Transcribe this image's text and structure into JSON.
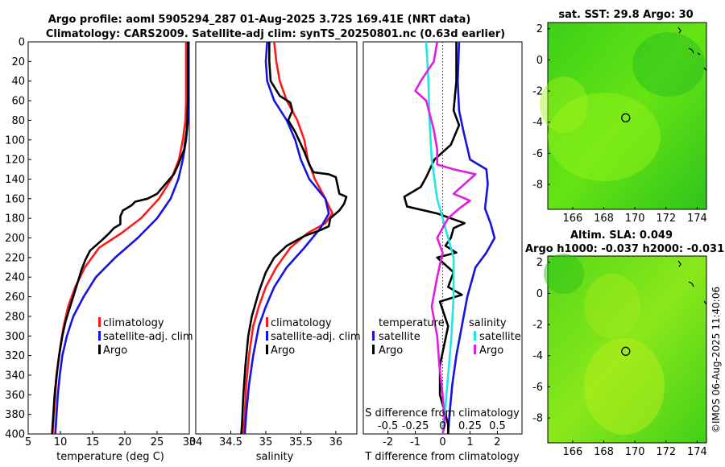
{
  "title": {
    "line1": "Argo profile: aoml 5905294_287 01-Aug-2025 3.72S 169.41E (NRT data)",
    "line2": "Climatology: CARS2009. Satellite-adj clim: synTS_20250801.nc (0.63d earlier)"
  },
  "colors": {
    "climatology": "#ff1a1a",
    "satellite": "#1414e0",
    "argo": "#000000",
    "cyan": "#22e6e6",
    "magenta": "#e01ee0",
    "map_green": "#44dd22"
  },
  "chart_data": [
    {
      "type": "line",
      "name": "temperature-profile",
      "xlabel": "temperature (deg C)",
      "ylabel": "",
      "xlim": [
        5,
        30
      ],
      "ylim": [
        400,
        0
      ],
      "xticks": [
        "5",
        "10",
        "15",
        "20",
        "25",
        "30"
      ],
      "yticks": [
        "0",
        "20",
        "40",
        "60",
        "80",
        "100",
        "120",
        "140",
        "160",
        "180",
        "200",
        "220",
        "240",
        "260",
        "280",
        "300",
        "320",
        "340",
        "360",
        "380",
        "400"
      ],
      "legend": [
        "climatology",
        "satellite-adj. clim",
        "Argo"
      ],
      "series": [
        {
          "name": "climatology",
          "color": "climatology",
          "points": [
            [
              29.5,
              0
            ],
            [
              29.5,
              60
            ],
            [
              29.4,
              80
            ],
            [
              29.0,
              100
            ],
            [
              28.4,
              120
            ],
            [
              27.2,
              140
            ],
            [
              25.3,
              160
            ],
            [
              22.5,
              180
            ],
            [
              19.5,
              195
            ],
            [
              16.0,
              210
            ],
            [
              13.8,
              230
            ],
            [
              12.3,
              250
            ],
            [
              11.2,
              270
            ],
            [
              10.5,
              290
            ],
            [
              10.0,
              310
            ],
            [
              9.6,
              330
            ],
            [
              9.3,
              350
            ],
            [
              9.1,
              370
            ],
            [
              8.9,
              390
            ],
            [
              8.8,
              400
            ]
          ]
        },
        {
          "name": "satellite-adj. clim",
          "color": "satellite",
          "points": [
            [
              29.9,
              0
            ],
            [
              29.9,
              60
            ],
            [
              29.8,
              80
            ],
            [
              29.5,
              100
            ],
            [
              29.0,
              120
            ],
            [
              28.3,
              140
            ],
            [
              27.1,
              160
            ],
            [
              25.0,
              180
            ],
            [
              22.0,
              200
            ],
            [
              18.5,
              220
            ],
            [
              15.5,
              240
            ],
            [
              13.6,
              260
            ],
            [
              12.0,
              280
            ],
            [
              11.0,
              300
            ],
            [
              10.3,
              320
            ],
            [
              9.9,
              340
            ],
            [
              9.6,
              360
            ],
            [
              9.4,
              380
            ],
            [
              9.2,
              400
            ]
          ]
        },
        {
          "name": "Argo",
          "color": "argo",
          "points": [
            [
              29.8,
              0
            ],
            [
              29.8,
              60
            ],
            [
              29.6,
              90
            ],
            [
              29.2,
              110
            ],
            [
              28.3,
              125
            ],
            [
              27.6,
              135
            ],
            [
              26.3,
              145
            ],
            [
              25.0,
              155
            ],
            [
              23.5,
              160
            ],
            [
              21.6,
              163
            ],
            [
              21.0,
              167
            ],
            [
              19.7,
              172
            ],
            [
              19.3,
              178
            ],
            [
              19.3,
              186
            ],
            [
              18.3,
              190
            ],
            [
              17.6,
              195
            ],
            [
              16.8,
              200
            ],
            [
              15.8,
              206
            ],
            [
              14.6,
              213
            ],
            [
              13.9,
              222
            ],
            [
              13.3,
              232
            ],
            [
              12.6,
              247
            ],
            [
              11.6,
              268
            ],
            [
              10.8,
              285
            ],
            [
              10.3,
              300
            ],
            [
              9.8,
              320
            ],
            [
              9.4,
              340
            ],
            [
              9.1,
              360
            ],
            [
              8.9,
              380
            ],
            [
              8.7,
              400
            ]
          ]
        }
      ]
    },
    {
      "type": "line",
      "name": "salinity-profile",
      "xlabel": "salinity",
      "xlim": [
        34,
        36.3
      ],
      "ylim": [
        400,
        0
      ],
      "xticks": [
        "34",
        "34.5",
        "35",
        "35.5",
        "36"
      ],
      "legend": [
        "climatology",
        "satellite-adj. clim",
        "Argo"
      ],
      "series": [
        {
          "name": "climatology",
          "color": "climatology",
          "points": [
            [
              35.12,
              0
            ],
            [
              35.15,
              20
            ],
            [
              35.2,
              40
            ],
            [
              35.3,
              60
            ],
            [
              35.45,
              80
            ],
            [
              35.55,
              100
            ],
            [
              35.6,
              120
            ],
            [
              35.7,
              140
            ],
            [
              35.85,
              160
            ],
            [
              35.95,
              175
            ],
            [
              35.85,
              185
            ],
            [
              35.6,
              195
            ],
            [
              35.35,
              210
            ],
            [
              35.15,
              230
            ],
            [
              35.0,
              250
            ],
            [
              34.9,
              270
            ],
            [
              34.82,
              290
            ],
            [
              34.76,
              320
            ],
            [
              34.72,
              350
            ],
            [
              34.7,
              380
            ],
            [
              34.68,
              400
            ]
          ]
        },
        {
          "name": "satellite-adj. clim",
          "color": "satellite",
          "points": [
            [
              35.02,
              0
            ],
            [
              35.0,
              20
            ],
            [
              35.02,
              40
            ],
            [
              35.12,
              60
            ],
            [
              35.3,
              80
            ],
            [
              35.42,
              100
            ],
            [
              35.5,
              120
            ],
            [
              35.62,
              140
            ],
            [
              35.85,
              160
            ],
            [
              35.9,
              175
            ],
            [
              35.78,
              190
            ],
            [
              35.55,
              210
            ],
            [
              35.3,
              230
            ],
            [
              35.12,
              250
            ],
            [
              35.0,
              270
            ],
            [
              34.9,
              290
            ],
            [
              34.82,
              320
            ],
            [
              34.76,
              350
            ],
            [
              34.72,
              380
            ],
            [
              34.7,
              400
            ]
          ]
        },
        {
          "name": "Argo",
          "color": "argo",
          "points": [
            [
              35.05,
              0
            ],
            [
              35.05,
              20
            ],
            [
              35.07,
              40
            ],
            [
              35.2,
              55
            ],
            [
              35.35,
              62
            ],
            [
              35.38,
              70
            ],
            [
              35.32,
              80
            ],
            [
              35.42,
              92
            ],
            [
              35.55,
              112
            ],
            [
              35.62,
              125
            ],
            [
              35.68,
              133
            ],
            [
              35.9,
              135
            ],
            [
              36.0,
              138
            ],
            [
              36.02,
              145
            ],
            [
              36.05,
              155
            ],
            [
              36.15,
              158
            ],
            [
              36.12,
              165
            ],
            [
              36.05,
              172
            ],
            [
              35.92,
              180
            ],
            [
              35.9,
              188
            ],
            [
              35.78,
              192
            ],
            [
              35.55,
              198
            ],
            [
              35.3,
              208
            ],
            [
              35.12,
              220
            ],
            [
              35.0,
              235
            ],
            [
              34.9,
              255
            ],
            [
              34.8,
              280
            ],
            [
              34.75,
              300
            ],
            [
              34.71,
              330
            ],
            [
              34.68,
              360
            ],
            [
              34.66,
              390
            ],
            [
              34.65,
              400
            ]
          ]
        }
      ]
    },
    {
      "type": "line",
      "name": "difference-profile",
      "xlabel": "T difference from climatology",
      "xlabel_top": "S difference from climatology",
      "xlim": [
        -2.9,
        2.9
      ],
      "slim": [
        -0.725,
        0.725
      ],
      "ylim": [
        400,
        0
      ],
      "xticks": [
        "-2",
        "-1",
        "0",
        "1",
        "2"
      ],
      "sticks": [
        "-0.5",
        "-0.25",
        "0",
        "0.25",
        "0.5"
      ],
      "legend_temperature_title": "temperature",
      "legend_salinity_title": "salinity",
      "legend_temperature": [
        "satellite",
        "Argo"
      ],
      "legend_salinity": [
        "satellite",
        "Argo"
      ],
      "series": [
        {
          "name": "T satellite",
          "color": "satellite",
          "axis": "T",
          "points": [
            [
              0.6,
              0
            ],
            [
              0.55,
              40
            ],
            [
              0.6,
              70
            ],
            [
              0.75,
              90
            ],
            [
              1.0,
              120
            ],
            [
              1.6,
              130
            ],
            [
              1.65,
              145
            ],
            [
              1.55,
              170
            ],
            [
              1.75,
              185
            ],
            [
              1.9,
              200
            ],
            [
              1.6,
              215
            ],
            [
              1.2,
              230
            ],
            [
              0.9,
              260
            ],
            [
              0.7,
              290
            ],
            [
              0.5,
              320
            ],
            [
              0.35,
              350
            ],
            [
              0.25,
              380
            ],
            [
              0.2,
              400
            ]
          ]
        },
        {
          "name": "T Argo",
          "color": "argo",
          "axis": "T",
          "points": [
            [
              0.5,
              0
            ],
            [
              0.5,
              40
            ],
            [
              0.4,
              70
            ],
            [
              0.6,
              85
            ],
            [
              0.3,
              105
            ],
            [
              -0.3,
              120
            ],
            [
              -0.6,
              138
            ],
            [
              -0.8,
              148
            ],
            [
              -1.4,
              158
            ],
            [
              -1.3,
              168
            ],
            [
              -0.2,
              175
            ],
            [
              0.8,
              185
            ],
            [
              0.4,
              190
            ],
            [
              0.3,
              200
            ],
            [
              0.1,
              208
            ],
            [
              0.5,
              215
            ],
            [
              -0.2,
              220
            ],
            [
              0.4,
              235
            ],
            [
              0.2,
              250
            ],
            [
              0.7,
              258
            ],
            [
              -0.1,
              265
            ],
            [
              0.2,
              290
            ],
            [
              -0.1,
              330
            ],
            [
              -0.1,
              360
            ],
            [
              0.2,
              390
            ],
            [
              0.2,
              400
            ]
          ]
        },
        {
          "name": "S satellite",
          "color": "cyan",
          "axis": "S",
          "points": [
            [
              -0.15,
              0
            ],
            [
              -0.13,
              40
            ],
            [
              -0.12,
              80
            ],
            [
              -0.1,
              120
            ],
            [
              -0.05,
              160
            ],
            [
              0.05,
              200
            ],
            [
              0.1,
              220
            ],
            [
              0.1,
              260
            ],
            [
              0.08,
              300
            ],
            [
              0.05,
              340
            ],
            [
              0.02,
              380
            ],
            [
              0.0,
              400
            ]
          ]
        },
        {
          "name": "S Argo",
          "color": "magenta",
          "axis": "S",
          "points": [
            [
              -0.05,
              0
            ],
            [
              -0.08,
              20
            ],
            [
              -0.2,
              40
            ],
            [
              -0.25,
              50
            ],
            [
              -0.15,
              60
            ],
            [
              -0.08,
              90
            ],
            [
              -0.05,
              110
            ],
            [
              -0.05,
              125
            ],
            [
              0.1,
              130
            ],
            [
              0.3,
              135
            ],
            [
              0.2,
              145
            ],
            [
              0.1,
              155
            ],
            [
              0.25,
              162
            ],
            [
              0.15,
              170
            ],
            [
              0.05,
              180
            ],
            [
              0.0,
              190
            ],
            [
              -0.05,
              200
            ],
            [
              0.0,
              215
            ],
            [
              -0.05,
              240
            ],
            [
              -0.1,
              270
            ],
            [
              -0.05,
              300
            ],
            [
              -0.03,
              330
            ],
            [
              0.0,
              360
            ],
            [
              0.02,
              390
            ],
            [
              0.0,
              400
            ]
          ]
        }
      ]
    }
  ],
  "maps": {
    "top": {
      "title": "sat. SST: 29.8 Argo: 30",
      "xticks": [
        "166",
        "168",
        "170",
        "172",
        "174"
      ],
      "yticks": [
        "2",
        "0",
        "-2",
        "-4",
        "-6",
        "-8"
      ],
      "marker": {
        "lon": 169.41,
        "lat": -3.72
      }
    },
    "bottom": {
      "title_line1": "Altim. SLA: 0.049",
      "title_line2": "Argo h1000: -0.037 h2000: -0.031",
      "xticks": [
        "166",
        "168",
        "170",
        "172",
        "174"
      ],
      "yticks": [
        "2",
        "0",
        "-2",
        "-4",
        "-6",
        "-8"
      ],
      "marker": {
        "lon": 169.41,
        "lat": -3.72
      }
    },
    "xlim": [
      164.4,
      174.6
    ],
    "ylim": [
      -9.6,
      2.4
    ]
  },
  "watermark": "©IMOS 06-Aug-2025 11:40:06"
}
